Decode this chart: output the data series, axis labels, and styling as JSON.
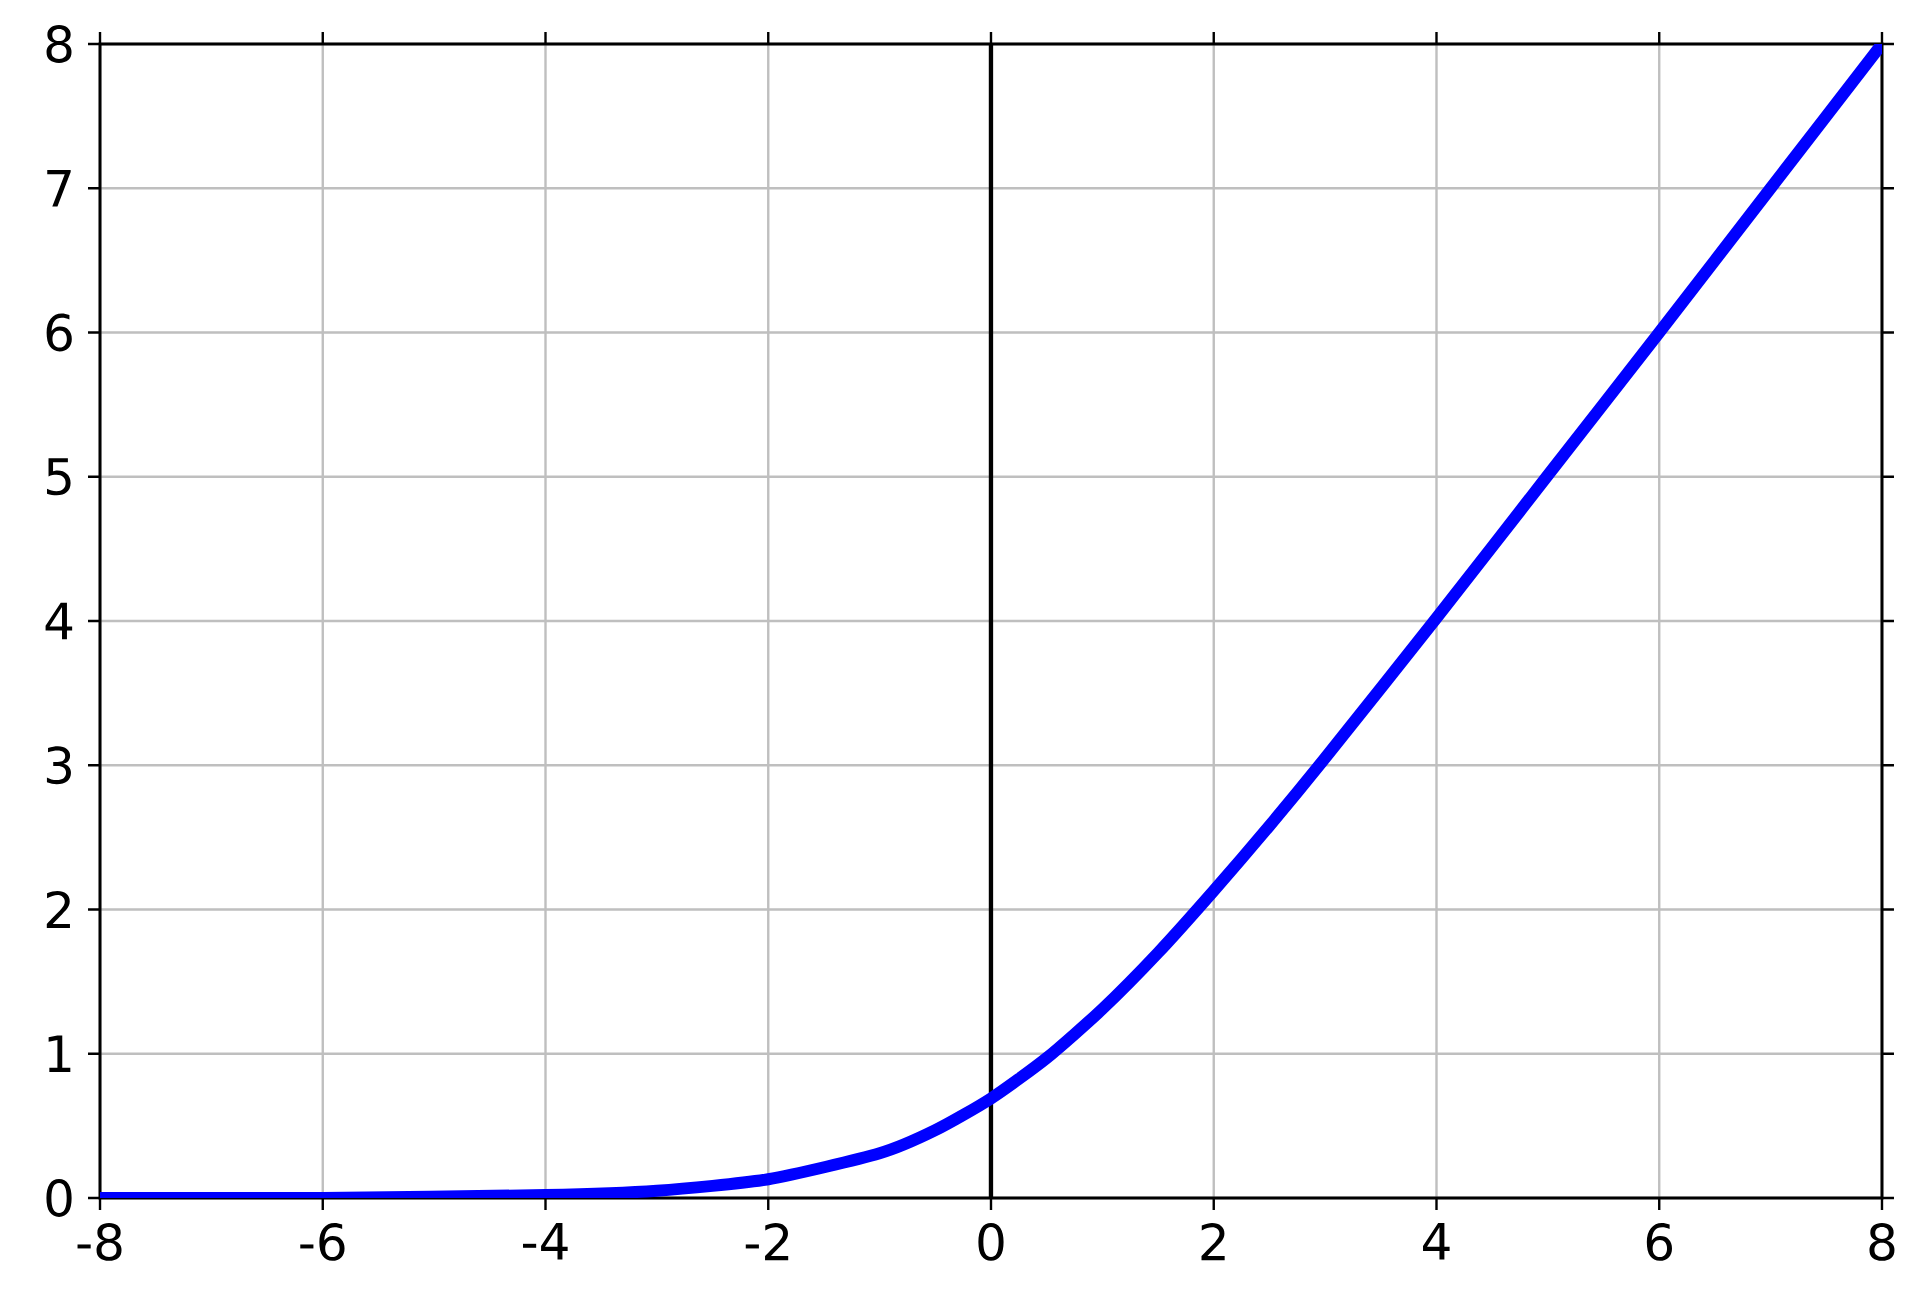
{
  "chart_data": {
    "type": "line",
    "x": [
      -8,
      -6,
      -4,
      -3,
      -2,
      -1,
      -0.5,
      0,
      0.5,
      1,
      1.5,
      2,
      2.5,
      3,
      4,
      5,
      6,
      7,
      8
    ],
    "series": [
      {
        "color": "#0000ff",
        "values": [
          0,
          0,
          0.02,
          0.05,
          0.13,
          0.31,
          0.47,
          0.69,
          0.97,
          1.31,
          1.7,
          2.13,
          2.58,
          3.05,
          4.02,
          5.01,
          6.0,
          7.0,
          8.0
        ]
      }
    ],
    "xlim": [
      -8,
      8
    ],
    "ylim": [
      0,
      8
    ],
    "xticks": [
      -8,
      -6,
      -4,
      -2,
      0,
      2,
      4,
      6,
      8
    ],
    "yticks": [
      0,
      1,
      2,
      3,
      4,
      5,
      6,
      7,
      8
    ],
    "ref_lines": [
      {
        "axis": "x",
        "value": 0,
        "color": "#000000"
      }
    ],
    "grid": true
  }
}
